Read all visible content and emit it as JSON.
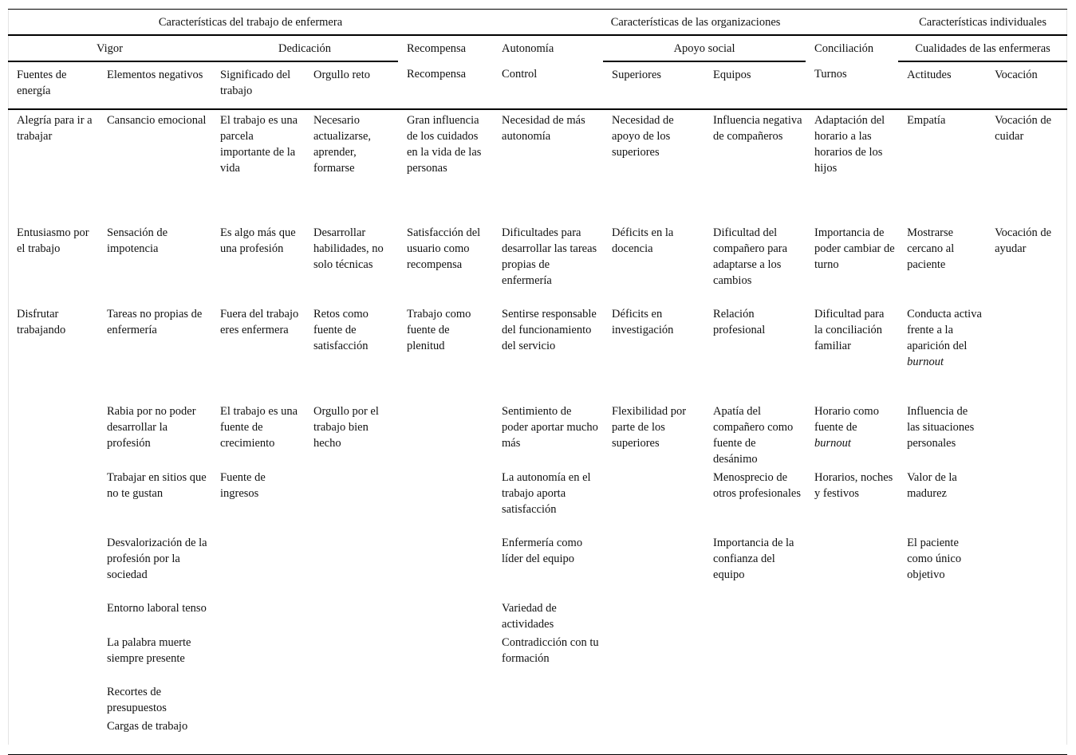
{
  "header": {
    "groups": [
      "Características del trabajo de enfermera",
      "Características de las organizaciones",
      "Características individuales"
    ],
    "dimensions": [
      "Vigor",
      "Dedicación",
      "Recompensa",
      "Autonomía",
      "Apoyo social",
      "Conciliación",
      "Cualidades de las enfermeras"
    ],
    "columns": [
      "Fuentes de energía",
      "Elementos negativos",
      "Significado del trabajo",
      "Orgullo reto",
      "Recompensa",
      "Control",
      "Superiores",
      "Equipos",
      "Turnos",
      "Actitudes",
      "Vocación"
    ]
  },
  "rows": [
    [
      "Alegría para ir a trabajar",
      "Cansancio emocional",
      "El trabajo es una parcela importante de la vida",
      "Necesario actualizarse, aprender, formarse",
      "Gran influencia de los cuidados en la vida de las personas",
      "Necesidad de más autonomía",
      "Necesidad de apoyo de los superiores",
      "Influencia negativa de compañeros",
      "Adaptación del horario a las horarios de los hijos",
      "Empatía",
      "Vocación de cuidar"
    ],
    [
      "Entusiasmo por el trabajo",
      "Sensación de impotencia",
      "Es algo más que una profesión",
      "Desarrollar habilidades, no solo técnicas",
      "Satisfacción del usuario como recompensa",
      "Dificultades para desarrollar las tareas propias de enfermería",
      "Déficits en la docencia",
      "Dificultad del compañero para adaptarse a los cambios",
      "Importancia de poder cambiar de turno",
      "Mostrarse cercano al paciente",
      "Vocación de ayudar"
    ],
    [
      "Disfrutar trabajando",
      "Tareas no propias de enfermería",
      "Fuera del trabajo eres enfermera",
      "Retos como fuente de satisfacción",
      "Trabajo como fuente de plenitud",
      "Sentirse responsable del funcionamiento del servicio",
      "Déficits en investigación",
      "Relación profesional",
      "Dificultad para la conciliación familiar",
      {
        "t": "Conducta activa frente a la aparición del",
        "i": "burnout"
      },
      ""
    ],
    [
      "",
      "Rabia por no poder desarrollar la profesión",
      "El trabajo es una fuente de crecimiento",
      "Orgullo por el trabajo bien hecho",
      "",
      "Sentimiento de poder aportar mucho más",
      "Flexibilidad por parte de los superiores",
      "Apatía del compañero como fuente de desánimo",
      {
        "t": "Horario como fuente de",
        "i": "burnout"
      },
      "Influencia de las situaciones personales",
      ""
    ],
    [
      "",
      "Trabajar en sitios que no te gustan",
      "Fuente de ingresos",
      "",
      "",
      "La autonomía en el trabajo aporta satisfacción",
      "",
      "Menosprecio de otros profesionales",
      "Horarios, noches y festivos",
      "Valor de la madurez",
      ""
    ],
    [
      "",
      "Desvalorización de la profesión por la sociedad",
      "",
      "",
      "",
      "Enfermería como líder del equipo",
      "",
      "Importancia de la confianza del equipo",
      "",
      "El paciente como único objetivo",
      ""
    ],
    [
      "",
      "Entorno laboral tenso",
      "",
      "",
      "",
      "Variedad de actividades",
      "",
      "",
      "",
      "",
      ""
    ],
    [
      "",
      "La palabra muerte siempre presente",
      "",
      "",
      "",
      "Contradicción con tu formación",
      "",
      "",
      "",
      "",
      ""
    ],
    [
      "",
      "Recortes de presupuestos",
      "",
      "",
      "",
      "",
      "",
      "",
      "",
      "",
      ""
    ],
    [
      "",
      "Cargas de trabajo",
      "",
      "",
      "",
      "",
      "",
      "",
      "",
      "",
      ""
    ]
  ]
}
